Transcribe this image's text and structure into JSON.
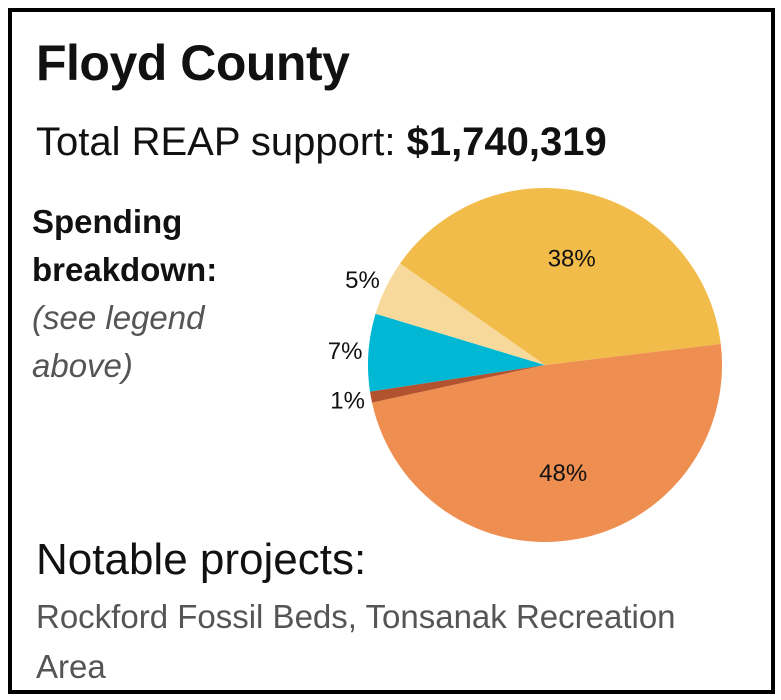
{
  "header": {
    "title": "Floyd County",
    "total_label": "Total REAP support: ",
    "total_value": "$1,740,319"
  },
  "breakdown": {
    "line1": "Spending",
    "line2": "breakdown:",
    "note1": "(see legend",
    "note2": "above)"
  },
  "chart_data": {
    "type": "pie",
    "title": "",
    "slices": [
      {
        "value": 38,
        "label": "38%",
        "color": "#F2BC4A"
      },
      {
        "value": 48,
        "label": "48%",
        "color": "#EE8E50"
      },
      {
        "value": 1,
        "label": "1%",
        "color": "#B2522E"
      },
      {
        "value": 7,
        "label": "7%",
        "color": "#00B8D4"
      },
      {
        "value": 5,
        "label": "5%",
        "color": "#F7D99B"
      }
    ]
  },
  "notable": {
    "heading": "Notable projects:",
    "text": "Rockford Fossil Beds, Tonsanak Recreation Area"
  }
}
